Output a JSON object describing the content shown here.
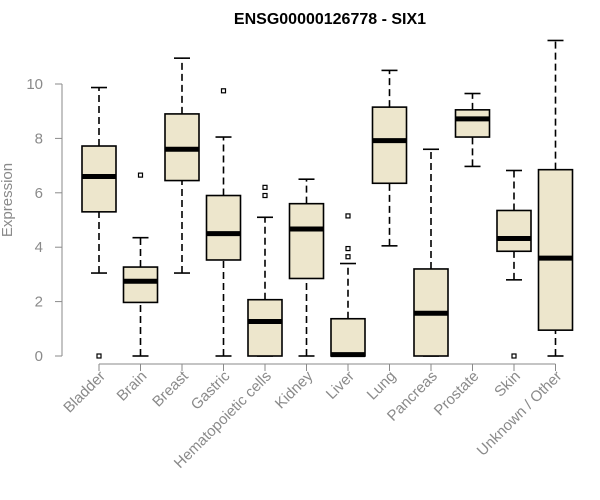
{
  "chart_data": {
    "type": "boxplot",
    "title": "ENSG00000126778 - SIX1",
    "xlabel": "",
    "ylabel": "Expression",
    "ylim": [
      0,
      11.5
    ],
    "yticks": [
      0,
      2,
      4,
      6,
      8,
      10
    ],
    "box_fill": "#ede6cc",
    "categories": [
      "Bladder",
      "Brain",
      "Breast",
      "Gastric",
      "Hematopoietic cells",
      "Kidney",
      "Liver",
      "Lung",
      "Pancreas",
      "Prostate",
      "Skin",
      "Unknown / Other"
    ],
    "boxes": [
      {
        "name": "Bladder",
        "whisker_low": 3.05,
        "q1": 5.3,
        "median": 6.6,
        "q3": 7.72,
        "whisker_high": 9.87,
        "outliers": [
          0.0
        ]
      },
      {
        "name": "Brain",
        "whisker_low": 0.0,
        "q1": 1.97,
        "median": 2.75,
        "q3": 3.27,
        "whisker_high": 4.35,
        "outliers": [
          6.65
        ]
      },
      {
        "name": "Breast",
        "whisker_low": 3.05,
        "q1": 6.45,
        "median": 7.6,
        "q3": 8.9,
        "whisker_high": 10.95,
        "outliers": []
      },
      {
        "name": "Gastric",
        "whisker_low": 0.0,
        "q1": 3.53,
        "median": 4.5,
        "q3": 5.9,
        "whisker_high": 8.05,
        "outliers": [
          9.75
        ]
      },
      {
        "name": "Hematopoietic cells",
        "whisker_low": 0.0,
        "q1": 0.0,
        "median": 1.27,
        "q3": 2.07,
        "whisker_high": 5.1,
        "outliers": [
          5.9,
          6.2
        ]
      },
      {
        "name": "Kidney",
        "whisker_low": 0.0,
        "q1": 2.85,
        "median": 4.67,
        "q3": 5.6,
        "whisker_high": 6.5,
        "outliers": []
      },
      {
        "name": "Liver",
        "whisker_low": 0.0,
        "q1": 0.0,
        "median": 0.05,
        "q3": 1.37,
        "whisker_high": 3.4,
        "outliers": [
          3.65,
          3.95,
          5.15
        ]
      },
      {
        "name": "Lung",
        "whisker_low": 4.05,
        "q1": 6.35,
        "median": 7.92,
        "q3": 9.15,
        "whisker_high": 10.5,
        "outliers": []
      },
      {
        "name": "Pancreas",
        "whisker_low": 0.0,
        "q1": 0.0,
        "median": 1.57,
        "q3": 3.2,
        "whisker_high": 7.6,
        "outliers": []
      },
      {
        "name": "Prostate",
        "whisker_low": 6.97,
        "q1": 8.05,
        "median": 8.72,
        "q3": 9.05,
        "whisker_high": 9.65,
        "outliers": []
      },
      {
        "name": "Skin",
        "whisker_low": 2.8,
        "q1": 3.85,
        "median": 4.32,
        "q3": 5.35,
        "whisker_high": 6.82,
        "outliers": [
          0.0
        ]
      },
      {
        "name": "Unknown / Other",
        "whisker_low": 0.0,
        "q1": 0.95,
        "median": 3.6,
        "q3": 6.85,
        "whisker_high": 11.6,
        "outliers": []
      }
    ]
  }
}
